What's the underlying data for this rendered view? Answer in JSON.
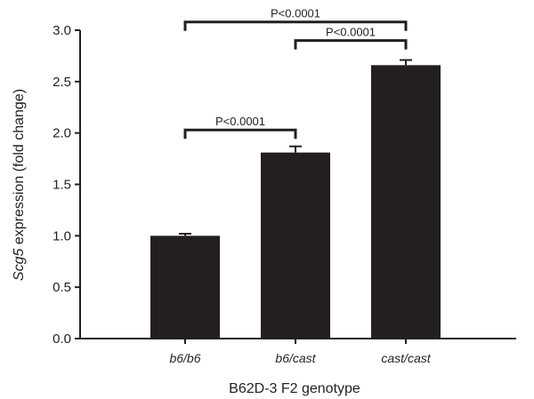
{
  "chart_data": {
    "type": "bar",
    "categories": [
      "b6/b6",
      "b6/cast",
      "cast/cast"
    ],
    "values": [
      1.0,
      1.81,
      2.66
    ],
    "errors": [
      0.02,
      0.06,
      0.05
    ],
    "xlabel": "B62D-3 F2 genotype",
    "ylabel_italic": "Scg5",
    "ylabel_rest": " expression (fold change)",
    "ylim": [
      0,
      3.0
    ],
    "yticks": [
      0.0,
      0.5,
      1.0,
      1.5,
      2.0,
      2.5,
      3.0
    ],
    "ytick_labels": [
      "0.0",
      "0.5",
      "1.0",
      "1.5",
      "2.0",
      "2.5",
      "3.0"
    ],
    "bar_color": "#231f20",
    "grid": false,
    "significance": [
      {
        "from": 0,
        "to": 1,
        "label": "P<0.0001",
        "level": 2.03
      },
      {
        "from": 1,
        "to": 2,
        "label": "P<0.0001",
        "level": 2.9
      },
      {
        "from": 0,
        "to": 2,
        "label": "P<0.0001",
        "level": 3.08
      }
    ]
  }
}
